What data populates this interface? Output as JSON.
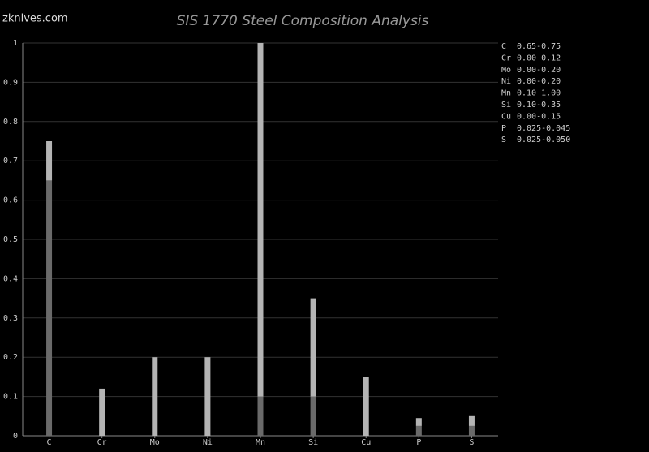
{
  "watermark": "zknives.com",
  "chart_data": {
    "type": "range-bar",
    "title": "SIS 1770 Steel Composition Analysis",
    "categories": [
      "C",
      "Cr",
      "Mo",
      "Ni",
      "Mn",
      "Si",
      "Cu",
      "P",
      "S"
    ],
    "low": [
      0.65,
      0,
      0,
      0,
      0.1,
      0.1,
      0,
      0.025,
      0.025
    ],
    "high": [
      0.75,
      0.12,
      0.2,
      0.2,
      1.0,
      0.35,
      0.15,
      0.045,
      0.05
    ],
    "range_labels": [
      "0.65-0.75",
      "0.00-0.12",
      "0.00-0.20",
      "0.00-0.20",
      "0.10-1.00",
      "0.10-0.35",
      "0.00-0.15",
      "0.025-0.045",
      "0.025-0.050"
    ],
    "ylim": [
      0,
      1
    ],
    "yticks": [
      0,
      0.1,
      0.2,
      0.3,
      0.4,
      0.5,
      0.6,
      0.7,
      0.8,
      0.9,
      1
    ],
    "grid": true,
    "low_color": "#6a6a6a",
    "high_color": "#b4b4b4"
  }
}
